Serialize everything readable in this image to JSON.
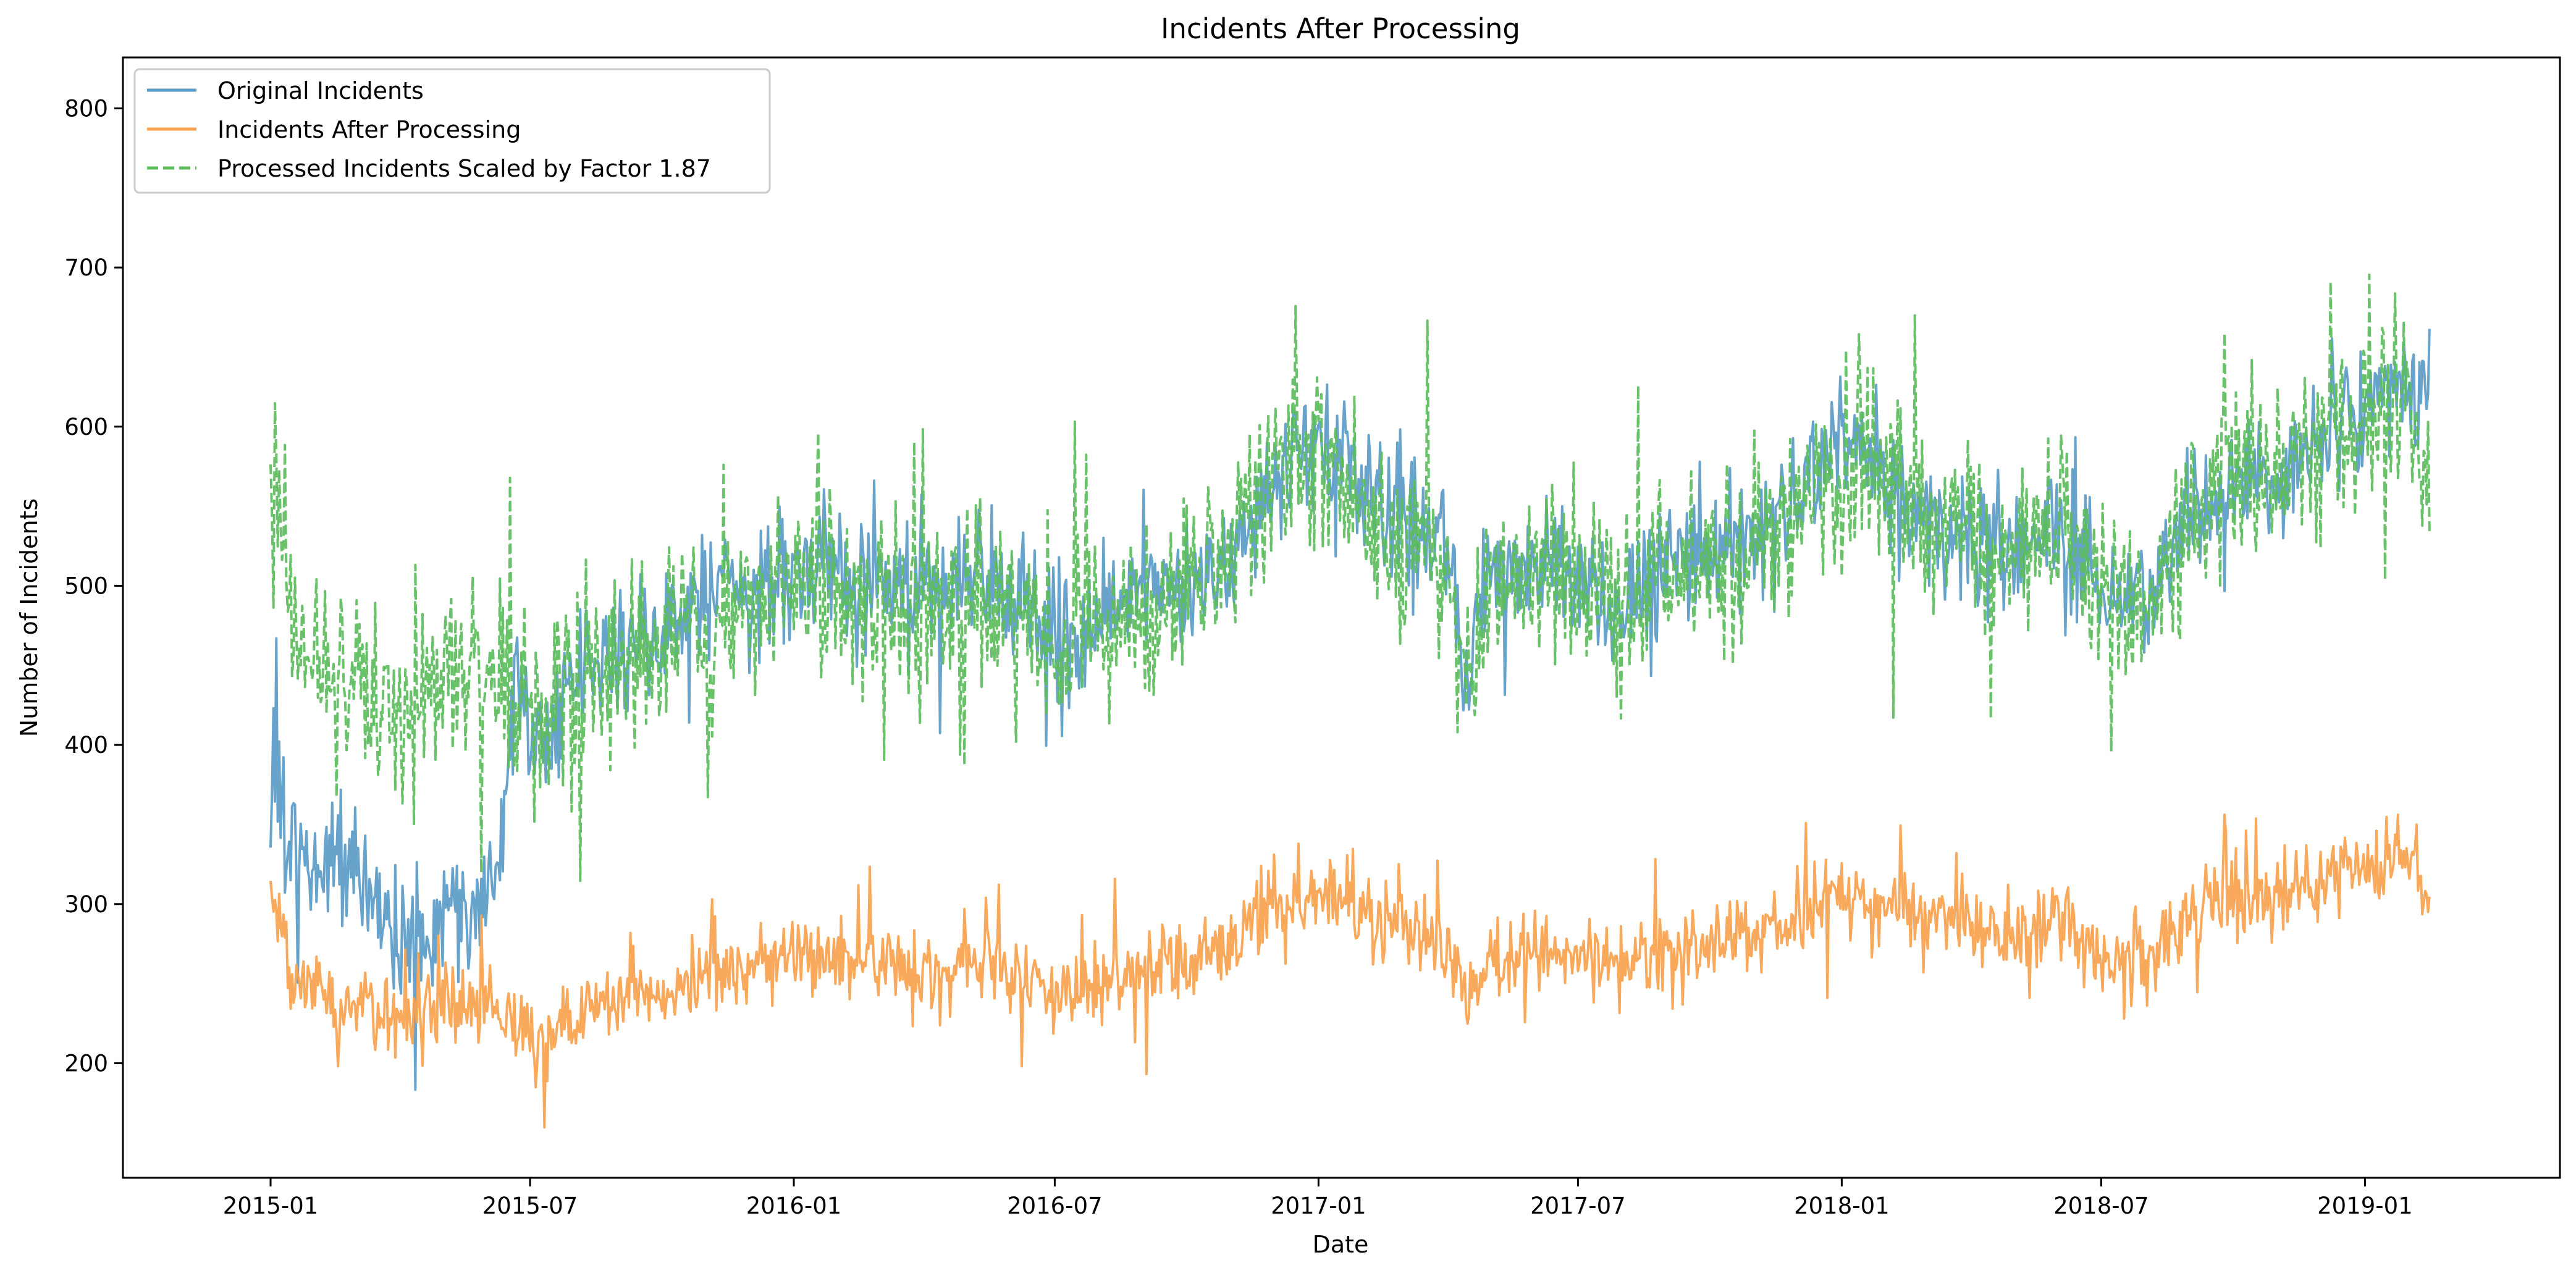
{
  "chart_data": {
    "type": "line",
    "title": "Incidents After Processing",
    "xlabel": "Date",
    "ylabel": "Number of Incidents",
    "xlim": [
      "2014-09-20",
      "2019-05-17"
    ],
    "ylim": [
      128,
      832
    ],
    "x_ticks": [
      "2015-01",
      "2015-07",
      "2016-01",
      "2016-07",
      "2017-01",
      "2017-07",
      "2018-01",
      "2018-07",
      "2019-01"
    ],
    "y_ticks": [
      200,
      300,
      400,
      500,
      600,
      700,
      800
    ],
    "grid": false,
    "legend_position": "top-left",
    "x_start": "2015-01-01",
    "x_end": "2019-02-15",
    "series": [
      {
        "name": "Original Incidents",
        "color": "#5b9bc8",
        "style": "solid",
        "key_points": [
          [
            "2015-01-01",
            390
          ],
          [
            "2015-01-15",
            330
          ],
          [
            "2015-02-01",
            320
          ],
          [
            "2015-02-15",
            340
          ],
          [
            "2015-03-01",
            310
          ],
          [
            "2015-03-15",
            300
          ],
          [
            "2015-04-01",
            280
          ],
          [
            "2015-04-15",
            270
          ],
          [
            "2015-05-01",
            290
          ],
          [
            "2015-05-15",
            300
          ],
          [
            "2015-06-01",
            310
          ],
          [
            "2015-06-15",
            370
          ],
          [
            "2015-06-22",
            460
          ],
          [
            "2015-07-01",
            430
          ],
          [
            "2015-07-15",
            390
          ],
          [
            "2015-08-01",
            440
          ],
          [
            "2015-09-01",
            460
          ],
          [
            "2015-10-01",
            470
          ],
          [
            "2015-11-01",
            490
          ],
          [
            "2015-12-01",
            500
          ],
          [
            "2016-01-01",
            505
          ],
          [
            "2016-02-01",
            510
          ],
          [
            "2016-03-01",
            500
          ],
          [
            "2016-04-01",
            495
          ],
          [
            "2016-05-01",
            505
          ],
          [
            "2016-06-01",
            490
          ],
          [
            "2016-07-01",
            470
          ],
          [
            "2016-08-01",
            480
          ],
          [
            "2016-09-01",
            490
          ],
          [
            "2016-10-01",
            500
          ],
          [
            "2016-11-01",
            520
          ],
          [
            "2016-12-01",
            560
          ],
          [
            "2017-01-01",
            590
          ],
          [
            "2017-02-01",
            560
          ],
          [
            "2017-03-01",
            540
          ],
          [
            "2017-04-01",
            520
          ],
          [
            "2017-04-15",
            440
          ],
          [
            "2017-05-01",
            510
          ],
          [
            "2017-06-01",
            520
          ],
          [
            "2017-07-01",
            500
          ],
          [
            "2017-08-01",
            490
          ],
          [
            "2017-09-01",
            510
          ],
          [
            "2017-10-01",
            520
          ],
          [
            "2017-11-01",
            530
          ],
          [
            "2017-12-01",
            560
          ],
          [
            "2018-01-01",
            590
          ],
          [
            "2018-02-01",
            570
          ],
          [
            "2018-03-01",
            540
          ],
          [
            "2018-04-01",
            530
          ],
          [
            "2018-05-01",
            520
          ],
          [
            "2018-06-01",
            540
          ],
          [
            "2018-07-01",
            500
          ],
          [
            "2018-08-01",
            490
          ],
          [
            "2018-09-01",
            550
          ],
          [
            "2018-10-01",
            560
          ],
          [
            "2018-11-01",
            570
          ],
          [
            "2018-12-01",
            590
          ],
          [
            "2019-01-01",
            610
          ],
          [
            "2019-02-01",
            620
          ],
          [
            "2019-02-15",
            640
          ]
        ]
      },
      {
        "name": "Incidents After Processing",
        "color": "#f9a24e",
        "style": "solid",
        "key_points": [
          [
            "2015-01-01",
            305
          ],
          [
            "2015-01-15",
            250
          ],
          [
            "2015-02-01",
            245
          ],
          [
            "2015-03-01",
            235
          ],
          [
            "2015-04-01",
            225
          ],
          [
            "2015-05-01",
            235
          ],
          [
            "2015-06-01",
            240
          ],
          [
            "2015-07-01",
            215
          ],
          [
            "2015-08-01",
            230
          ],
          [
            "2015-09-01",
            240
          ],
          [
            "2015-10-01",
            245
          ],
          [
            "2015-11-01",
            255
          ],
          [
            "2015-12-01",
            260
          ],
          [
            "2016-01-01",
            265
          ],
          [
            "2016-02-01",
            265
          ],
          [
            "2016-03-01",
            260
          ],
          [
            "2016-04-01",
            258
          ],
          [
            "2016-05-01",
            265
          ],
          [
            "2016-06-01",
            255
          ],
          [
            "2016-07-01",
            245
          ],
          [
            "2016-08-01",
            255
          ],
          [
            "2016-09-01",
            258
          ],
          [
            "2016-10-01",
            265
          ],
          [
            "2016-11-01",
            275
          ],
          [
            "2016-12-01",
            300
          ],
          [
            "2017-01-01",
            310
          ],
          [
            "2017-02-01",
            295
          ],
          [
            "2017-03-01",
            285
          ],
          [
            "2017-04-01",
            275
          ],
          [
            "2017-04-15",
            235
          ],
          [
            "2017-05-01",
            270
          ],
          [
            "2017-06-01",
            278
          ],
          [
            "2017-07-01",
            265
          ],
          [
            "2017-08-01",
            260
          ],
          [
            "2017-09-01",
            270
          ],
          [
            "2017-10-01",
            275
          ],
          [
            "2017-11-01",
            280
          ],
          [
            "2017-12-01",
            295
          ],
          [
            "2018-01-01",
            310
          ],
          [
            "2018-02-01",
            300
          ],
          [
            "2018-03-01",
            290
          ],
          [
            "2018-04-01",
            285
          ],
          [
            "2018-05-01",
            280
          ],
          [
            "2018-06-01",
            290
          ],
          [
            "2018-07-01",
            265
          ],
          [
            "2018-08-01",
            262
          ],
          [
            "2018-09-01",
            290
          ],
          [
            "2018-10-01",
            300
          ],
          [
            "2018-11-01",
            305
          ],
          [
            "2018-12-01",
            315
          ],
          [
            "2019-01-01",
            325
          ],
          [
            "2019-02-01",
            330
          ],
          [
            "2019-02-15",
            300
          ]
        ]
      },
      {
        "name": "Processed Incidents Scaled by Factor 1.87",
        "color": "#5cbd5c",
        "style": "dashed",
        "key_points": [
          [
            "2015-01-01",
            570
          ],
          [
            "2015-01-15",
            470
          ],
          [
            "2015-02-01",
            460
          ],
          [
            "2015-03-01",
            440
          ],
          [
            "2015-04-01",
            420
          ],
          [
            "2015-05-01",
            440
          ],
          [
            "2015-06-01",
            450
          ],
          [
            "2015-07-01",
            400
          ],
          [
            "2015-08-01",
            430
          ],
          [
            "2015-09-01",
            450
          ],
          [
            "2015-10-01",
            460
          ],
          [
            "2015-11-01",
            475
          ],
          [
            "2015-12-01",
            485
          ],
          [
            "2016-01-01",
            495
          ],
          [
            "2016-02-01",
            495
          ],
          [
            "2016-03-01",
            485
          ],
          [
            "2016-04-01",
            482
          ],
          [
            "2016-05-01",
            495
          ],
          [
            "2016-06-01",
            478
          ],
          [
            "2016-07-01",
            458
          ],
          [
            "2016-08-01",
            477
          ],
          [
            "2016-09-01",
            482
          ],
          [
            "2016-10-01",
            495
          ],
          [
            "2016-11-01",
            514
          ],
          [
            "2016-12-01",
            561
          ],
          [
            "2017-01-01",
            580
          ],
          [
            "2017-02-01",
            552
          ],
          [
            "2017-03-01",
            533
          ],
          [
            "2017-04-01",
            514
          ],
          [
            "2017-04-15",
            440
          ],
          [
            "2017-05-01",
            505
          ],
          [
            "2017-06-01",
            520
          ],
          [
            "2017-07-01",
            496
          ],
          [
            "2017-08-01",
            486
          ],
          [
            "2017-09-01",
            505
          ],
          [
            "2017-10-01",
            514
          ],
          [
            "2017-11-01",
            524
          ],
          [
            "2017-12-01",
            552
          ],
          [
            "2018-01-01",
            580
          ],
          [
            "2018-02-01",
            561
          ],
          [
            "2018-03-01",
            542
          ],
          [
            "2018-04-01",
            533
          ],
          [
            "2018-05-01",
            524
          ],
          [
            "2018-06-01",
            542
          ],
          [
            "2018-07-01",
            496
          ],
          [
            "2018-08-01",
            490
          ],
          [
            "2018-09-01",
            542
          ],
          [
            "2018-10-01",
            561
          ],
          [
            "2018-11-01",
            570
          ],
          [
            "2018-12-01",
            589
          ],
          [
            "2019-01-01",
            608
          ],
          [
            "2019-02-01",
            617
          ],
          [
            "2019-02-15",
            561
          ]
        ]
      }
    ]
  }
}
